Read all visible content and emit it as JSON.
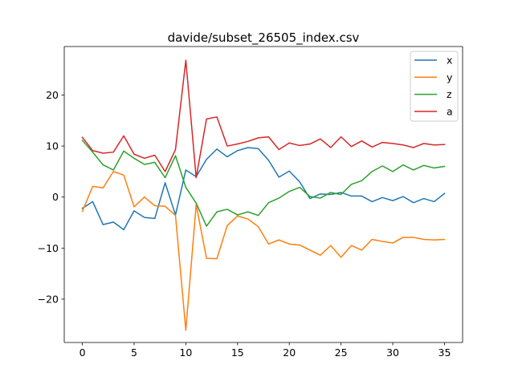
{
  "chart_data": {
    "type": "line",
    "title": "davide/subset_26505_index.csv",
    "xlabel": "",
    "ylabel": "",
    "xlim": [
      -1.75,
      36.75
    ],
    "ylim": [
      -28.5,
      29.5
    ],
    "xticks": [
      0,
      5,
      10,
      15,
      20,
      25,
      30,
      35
    ],
    "yticks": [
      -20,
      -10,
      0,
      10,
      20
    ],
    "ytick_labels": [
      "−20",
      "−10",
      "0",
      "10",
      "20"
    ],
    "grid": false,
    "legend_position": "upper right",
    "x": [
      0,
      1,
      2,
      3,
      4,
      5,
      6,
      7,
      8,
      9,
      10,
      11,
      12,
      13,
      14,
      15,
      16,
      17,
      18,
      19,
      20,
      21,
      22,
      23,
      24,
      25,
      26,
      27,
      28,
      29,
      30,
      31,
      32,
      33,
      34,
      35
    ],
    "series": [
      {
        "name": "x",
        "color": "#1f77b4",
        "values": [
          -2.2,
          -0.9,
          -5.4,
          -4.9,
          -6.4,
          -2.7,
          -4.0,
          -4.2,
          2.8,
          -3.5,
          5.3,
          4.0,
          7.4,
          9.4,
          7.9,
          9.1,
          9.7,
          9.5,
          7.2,
          3.9,
          5.1,
          3.0,
          -0.3,
          0.6,
          0.5,
          0.9,
          0.2,
          0.2,
          -0.9,
          -0.1,
          -0.7,
          0.1,
          -1.1,
          -0.3,
          -0.9,
          0.7
        ]
      },
      {
        "name": "y",
        "color": "#ff7f0e",
        "values": [
          -2.8,
          2.1,
          1.8,
          5.0,
          4.3,
          -1.9,
          0.0,
          -1.7,
          -1.8,
          -3.6,
          -26.1,
          -1.5,
          -12.0,
          -12.1,
          -5.6,
          -3.7,
          -4.3,
          -5.8,
          -9.2,
          -8.4,
          -9.2,
          -9.4,
          -10.4,
          -11.4,
          -9.5,
          -11.8,
          -9.5,
          -10.4,
          -8.3,
          -8.7,
          -9.0,
          -7.9,
          -7.9,
          -8.3,
          -8.4,
          -8.3
        ]
      },
      {
        "name": "z",
        "color": "#2ca02c",
        "values": [
          11.1,
          8.8,
          6.3,
          5.3,
          9.0,
          7.6,
          6.4,
          6.8,
          3.8,
          8.1,
          1.9,
          -1.2,
          -5.7,
          -2.9,
          -2.4,
          -3.5,
          -2.9,
          -3.6,
          -1.1,
          -0.2,
          1.1,
          1.9,
          0.1,
          -0.2,
          0.9,
          0.5,
          2.5,
          3.2,
          5.0,
          6.1,
          5.0,
          6.3,
          5.3,
          6.2,
          5.7,
          6.0
        ]
      },
      {
        "name": "a",
        "color": "#d62728",
        "values": [
          11.7,
          9.1,
          8.6,
          8.8,
          12.0,
          8.4,
          7.6,
          8.2,
          5.0,
          9.3,
          26.8,
          3.8,
          15.3,
          15.7,
          10.0,
          10.4,
          10.9,
          11.6,
          11.8,
          9.3,
          10.6,
          10.1,
          10.4,
          11.4,
          9.7,
          11.8,
          9.9,
          11.0,
          9.8,
          10.7,
          10.5,
          10.2,
          9.7,
          10.5,
          10.2,
          10.3
        ]
      }
    ]
  }
}
